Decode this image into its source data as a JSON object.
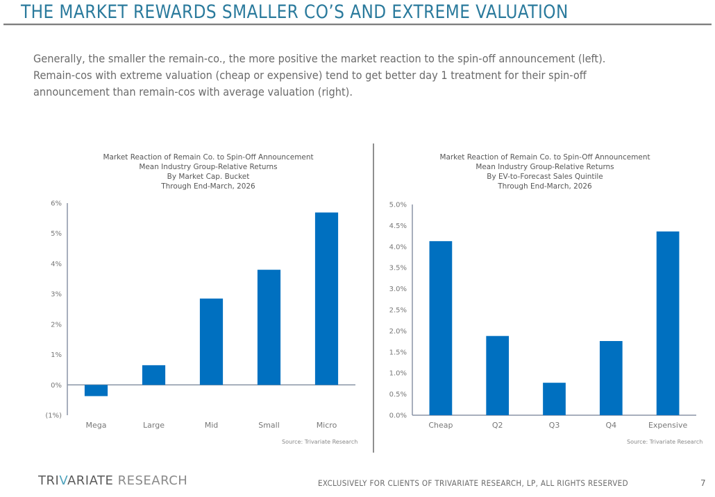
{
  "page": {
    "title": "THE MARKET REWARDS SMALLER CO’S AND EXTREME VALUATION",
    "intro_lines": [
      "Generally, the smaller the remain-co., the more positive the market reaction to the spin-off announcement (left).",
      "Remain-cos with extreme valuation (cheap or expensive) tend to get better day 1 treatment for their spin-off",
      "announcement than remain-cos with average valuation (right)."
    ],
    "footer": {
      "logo_strong": "TRI",
      "logo_v": "V",
      "logo_rest": "ARIATE",
      "logo_light": " RESEARCH",
      "note": "EXCLUSIVELY FOR CLIENTS OF TRIVARIATE RESEARCH, LP, ALL RIGHTS RESERVED",
      "page_number": "7"
    },
    "colors": {
      "bar": "#0070c0",
      "title": "#2a7a9c",
      "axis": "#8a94a6"
    }
  },
  "chart_data": [
    {
      "type": "bar",
      "title_lines": [
        "Market Reaction of Remain Co. to Spin-Off Announcement",
        "Mean Industry Group-Relative Returns",
        "By Market Cap. Bucket",
        "Through End-March, 2026"
      ],
      "categories": [
        "Mega",
        "Large",
        "Mid",
        "Small",
        "Micro"
      ],
      "values": [
        -0.37,
        0.65,
        2.85,
        3.8,
        5.69
      ],
      "unit": "%",
      "ylim": [
        -1,
        6
      ],
      "yticks": [
        6,
        5,
        4,
        3,
        2,
        1,
        0,
        -1
      ],
      "ytick_labels": [
        "6%",
        "5%",
        "4%",
        "3%",
        "2%",
        "1%",
        "0%",
        "(1%)"
      ],
      "xlabel": "",
      "ylabel": "",
      "grid": false,
      "legend": "none",
      "source": "Source: Trivariate Research"
    },
    {
      "type": "bar",
      "title_lines": [
        "Market Reaction of Remain Co. to Spin-Off Announcement",
        "Mean Industry Group-Relative Returns",
        "By EV-to-Forecast Sales Quintile",
        "Through End-March, 2026"
      ],
      "categories": [
        "Cheap",
        "Q2",
        "Q3",
        "Q4",
        "Expensive"
      ],
      "values": [
        4.13,
        1.88,
        0.77,
        1.76,
        4.36
      ],
      "unit": "%",
      "ylim": [
        0,
        5
      ],
      "yticks": [
        5.0,
        4.5,
        4.0,
        3.5,
        3.0,
        2.5,
        2.0,
        1.5,
        1.0,
        0.5,
        0.0
      ],
      "ytick_labels": [
        "5.0%",
        "4.5%",
        "4.0%",
        "3.5%",
        "3.0%",
        "2.5%",
        "2.0%",
        "1.5%",
        "1.0%",
        "0.5%",
        "0.0%"
      ],
      "xlabel": "",
      "ylabel": "",
      "grid": false,
      "legend": "none",
      "source": "Source: Trivariate Research"
    }
  ]
}
